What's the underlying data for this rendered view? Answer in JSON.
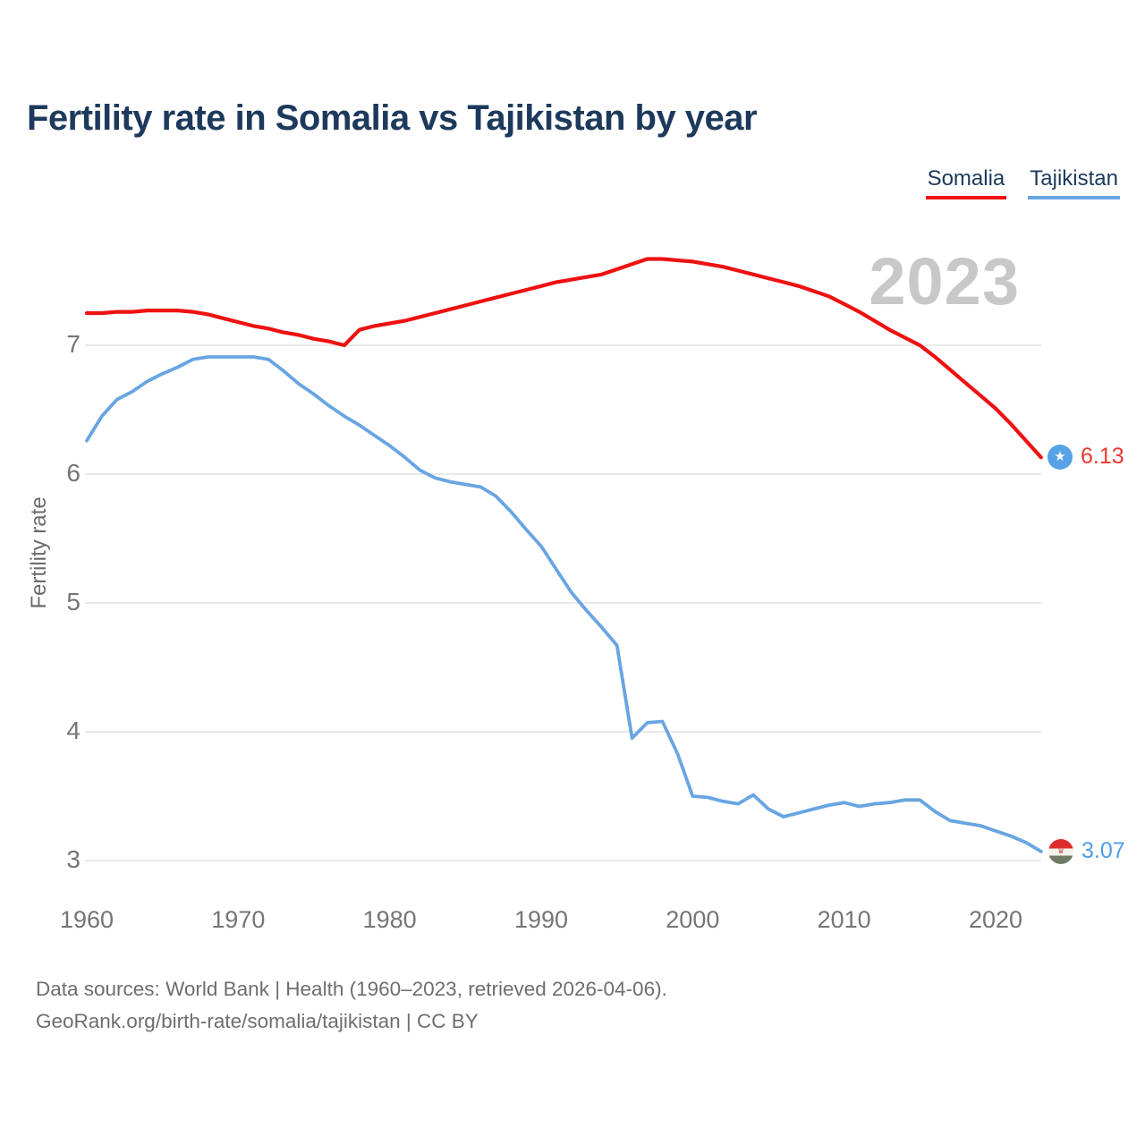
{
  "header": {
    "title": "Fertility rate in Somalia vs Tajikistan by year"
  },
  "legend": {
    "items": [
      {
        "label": "Somalia",
        "color": "#ee1111"
      },
      {
        "label": "Tajikistan",
        "color": "#68a5e2"
      }
    ]
  },
  "watermark": "2023",
  "axes": {
    "y_label": "Fertility rate",
    "y_ticks": [
      7,
      6,
      5,
      4,
      3
    ],
    "x_ticks": [
      1960,
      1970,
      1980,
      1990,
      2000,
      2010,
      2020
    ]
  },
  "end_labels": {
    "somalia": {
      "value": "6.13",
      "flag": "somalia-flag-star",
      "color": "#e8392f"
    },
    "tajikistan": {
      "value": "3.07",
      "flag": "tajikistan-flag",
      "color": "#4d9de9"
    }
  },
  "footer": {
    "line1": "Data sources: World Bank | Health (1960–2023, retrieved 2026-04-06).",
    "line2": "GeoRank.org/birth-rate/somalia/tajikistan | CC BY"
  },
  "chart_data": {
    "type": "line",
    "title": "Fertility rate in Somalia vs Tajikistan by year",
    "xlabel": "",
    "ylabel": "Fertility rate",
    "x_start": 1960,
    "x_step": 1,
    "x_end": 2023,
    "xlim": [
      1960,
      2023
    ],
    "ylim": [
      3,
      7.75
    ],
    "grid": "horizontal",
    "legend_position": "top-right",
    "annotation_year": "2023",
    "series": [
      {
        "name": "Somalia",
        "color": "#ee1111",
        "end_label": "6.13",
        "values": [
          7.25,
          7.25,
          7.26,
          7.26,
          7.27,
          7.27,
          7.27,
          7.26,
          7.24,
          7.21,
          7.18,
          7.15,
          7.13,
          7.1,
          7.08,
          7.05,
          7.03,
          7.0,
          7.12,
          7.15,
          7.17,
          7.19,
          7.22,
          7.25,
          7.28,
          7.31,
          7.34,
          7.37,
          7.4,
          7.43,
          7.46,
          7.49,
          7.51,
          7.53,
          7.55,
          7.59,
          7.63,
          7.67,
          7.67,
          7.66,
          7.65,
          7.63,
          7.61,
          7.58,
          7.55,
          7.52,
          7.49,
          7.46,
          7.42,
          7.38,
          7.32,
          7.26,
          7.19,
          7.12,
          7.06,
          7.0,
          6.91,
          6.81,
          6.71,
          6.61,
          6.51,
          6.39,
          6.26,
          6.13
        ]
      },
      {
        "name": "Tajikistan",
        "color": "#68a5e2",
        "end_label": "3.07",
        "values": [
          6.26,
          6.45,
          6.58,
          6.64,
          6.72,
          6.78,
          6.83,
          6.89,
          6.91,
          6.91,
          6.91,
          6.91,
          6.89,
          6.8,
          6.7,
          6.62,
          6.53,
          6.45,
          6.38,
          6.3,
          6.22,
          6.13,
          6.03,
          5.97,
          5.94,
          5.92,
          5.9,
          5.83,
          5.71,
          5.57,
          5.44,
          5.26,
          5.08,
          4.94,
          4.81,
          4.67,
          3.95,
          4.07,
          4.08,
          3.83,
          3.5,
          3.49,
          3.46,
          3.44,
          3.51,
          3.4,
          3.34,
          3.37,
          3.4,
          3.43,
          3.45,
          3.42,
          3.44,
          3.45,
          3.47,
          3.47,
          3.38,
          3.31,
          3.29,
          3.27,
          3.23,
          3.19,
          3.14,
          3.07
        ]
      }
    ]
  }
}
